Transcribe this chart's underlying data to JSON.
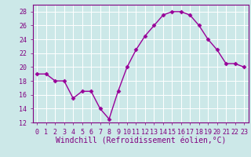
{
  "x": [
    0,
    1,
    2,
    3,
    4,
    5,
    6,
    7,
    8,
    9,
    10,
    11,
    12,
    13,
    14,
    15,
    16,
    17,
    18,
    19,
    20,
    21,
    22,
    23
  ],
  "y": [
    19,
    19,
    18,
    18,
    15.5,
    16.5,
    16.5,
    14,
    12.5,
    16.5,
    20,
    22.5,
    24.5,
    26,
    27.5,
    28,
    28,
    27.5,
    26,
    24,
    22.5,
    20.5,
    20.5,
    20
  ],
  "line_color": "#990099",
  "marker": "D",
  "markersize": 2.5,
  "linewidth": 1.0,
  "xlabel": "Windchill (Refroidissement éolien,°C)",
  "xlabel_fontsize": 7,
  "ylim": [
    12,
    29
  ],
  "yticks": [
    12,
    14,
    16,
    18,
    20,
    22,
    24,
    26,
    28
  ],
  "xticks": [
    0,
    1,
    2,
    3,
    4,
    5,
    6,
    7,
    8,
    9,
    10,
    11,
    12,
    13,
    14,
    15,
    16,
    17,
    18,
    19,
    20,
    21,
    22,
    23
  ],
  "xtick_labels": [
    "0",
    "1",
    "2",
    "3",
    "4",
    "5",
    "6",
    "7",
    "8",
    "9",
    "10",
    "11",
    "12",
    "13",
    "14",
    "15",
    "16",
    "17",
    "18",
    "19",
    "20",
    "21",
    "22",
    "23"
  ],
  "background_color": "#cce8e8",
  "grid_color": "#ffffff",
  "tick_fontsize": 6,
  "xlim": [
    -0.5,
    23.5
  ],
  "tick_color": "#800080",
  "label_color": "#800080",
  "spine_color": "#800080"
}
